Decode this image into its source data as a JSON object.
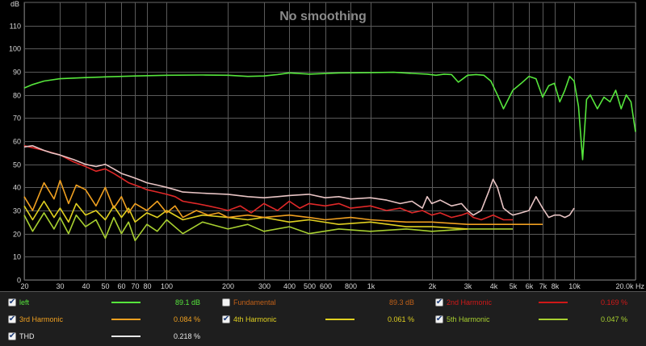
{
  "chart_data": {
    "type": "line",
    "title": "No smoothing",
    "ylabel": "dB",
    "xunit": "Hz",
    "xscale": "log",
    "xlim": [
      20,
      20000
    ],
    "ylim": [
      0,
      120
    ],
    "grid": true,
    "x_ticks": [
      20,
      30,
      40,
      50,
      60,
      70,
      80,
      100,
      200,
      300,
      400,
      500,
      600,
      800,
      1000,
      2000,
      3000,
      4000,
      5000,
      6000,
      7000,
      8000,
      10000,
      20000
    ],
    "x_tick_labels": [
      "20",
      "30",
      "40",
      "50",
      "60",
      "70",
      "80",
      "100",
      "200",
      "300",
      "400",
      "500",
      "600",
      "800",
      "1k",
      "2k",
      "3k",
      "4k",
      "5k",
      "6k",
      "7k",
      "8k",
      "10k",
      "20.0k Hz"
    ],
    "y_ticks": [
      0,
      10,
      20,
      30,
      40,
      50,
      60,
      70,
      80,
      90,
      100,
      110
    ],
    "series": [
      {
        "name": "left",
        "color": "#56e63c",
        "x": [
          20,
          22,
          25,
          30,
          40,
          50,
          70,
          100,
          150,
          200,
          250,
          300,
          350,
          400,
          500,
          700,
          1000,
          1300,
          1600,
          1900,
          2100,
          2300,
          2500,
          2700,
          3000,
          3300,
          3600,
          3900,
          4200,
          4500,
          5000,
          5500,
          6000,
          6500,
          7000,
          7500,
          8000,
          8500,
          9000,
          9500,
          10000,
          10500,
          11000,
          11500,
          12000,
          13000,
          14000,
          15000,
          16000,
          17000,
          18000,
          19000,
          20000
        ],
        "y": [
          83,
          84.5,
          86,
          87,
          87.5,
          87.8,
          88.2,
          88.5,
          88.6,
          88.5,
          88,
          88.2,
          88.8,
          89.5,
          89,
          89.5,
          89.6,
          89.8,
          89.3,
          89,
          88.5,
          89,
          88.8,
          85.5,
          88.5,
          88.8,
          88.5,
          86,
          80,
          74,
          82,
          85,
          88,
          87,
          79,
          84,
          85,
          77,
          82,
          88,
          86,
          75,
          52,
          78,
          80,
          74,
          79,
          77,
          82,
          74,
          80,
          77,
          64
        ]
      },
      {
        "name": "THD",
        "color": "#e8c4c4",
        "x": [
          20,
          22,
          25,
          27,
          30,
          35,
          40,
          45,
          50,
          55,
          60,
          65,
          70,
          75,
          80,
          90,
          100,
          110,
          120,
          150,
          200,
          250,
          300,
          350,
          400,
          500,
          600,
          700,
          800,
          1000,
          1200,
          1400,
          1600,
          1800,
          1900,
          2000,
          2200,
          2500,
          2800,
          3000,
          3200,
          3500,
          3800,
          4000,
          4200,
          4500,
          4800,
          5000,
          5500,
          6000,
          6500,
          7000,
          7500,
          8000,
          8500,
          9000,
          9500,
          10000
        ],
        "y": [
          57.5,
          58,
          56,
          55,
          54,
          52,
          50,
          49,
          50,
          48,
          46,
          45,
          44,
          43,
          42,
          41,
          40,
          39,
          38,
          37.5,
          37,
          36,
          35.5,
          36,
          36.5,
          37,
          35.5,
          36,
          35,
          35.5,
          34.5,
          33,
          34,
          31,
          36,
          33,
          34.5,
          32,
          33,
          30,
          28,
          30,
          38,
          43.5,
          40,
          31,
          29,
          28,
          29,
          30,
          36,
          31,
          27,
          28,
          28,
          27,
          28,
          31
        ]
      },
      {
        "name": "2nd Harmonic",
        "color": "#e02828",
        "x": [
          20,
          25,
          30,
          35,
          40,
          45,
          50,
          55,
          60,
          65,
          70,
          75,
          80,
          90,
          100,
          110,
          120,
          140,
          160,
          180,
          200,
          230,
          260,
          300,
          350,
          400,
          450,
          500,
          600,
          700,
          800,
          1000,
          1200,
          1400,
          1600,
          1800,
          2000,
          2200,
          2500,
          2800,
          3000,
          3200,
          3500,
          4000,
          4500,
          5000
        ],
        "y": [
          58,
          56,
          54,
          51,
          49,
          47,
          48,
          46,
          44,
          42,
          41,
          40,
          39,
          38,
          37,
          36,
          34,
          33,
          32,
          31,
          30,
          32,
          29,
          33,
          30,
          34,
          31,
          33,
          32,
          33,
          31,
          32,
          30,
          31,
          29,
          30,
          28,
          29,
          27,
          28,
          29,
          27,
          26,
          28,
          26,
          26
        ]
      },
      {
        "name": "3rd Harmonic",
        "color": "#f0a020",
        "x": [
          20,
          22,
          25,
          28,
          30,
          33,
          36,
          40,
          45,
          50,
          55,
          60,
          65,
          70,
          80,
          90,
          100,
          110,
          120,
          140,
          160,
          180,
          200,
          250,
          300,
          400,
          500,
          600,
          800,
          1000,
          1500,
          2000,
          3000,
          4000,
          5000,
          6000,
          7000
        ],
        "y": [
          36,
          30,
          42,
          35,
          43,
          33,
          41,
          39,
          32,
          40,
          31,
          36,
          29,
          33,
          30,
          34,
          29,
          32,
          27,
          30,
          28,
          29,
          27,
          28,
          27,
          28,
          27,
          26,
          27,
          26,
          25,
          25,
          24,
          24,
          24,
          24,
          24
        ]
      },
      {
        "name": "4th Harmonic",
        "color": "#e0d020",
        "x": [
          20,
          22,
          25,
          28,
          30,
          33,
          36,
          40,
          45,
          50,
          55,
          60,
          65,
          70,
          80,
          90,
          100,
          120,
          150,
          200,
          250,
          300,
          400,
          500,
          700,
          1000,
          1500,
          2000,
          3000
        ],
        "y": [
          32,
          26,
          34,
          27,
          31,
          25,
          33,
          28,
          30,
          26,
          32,
          27,
          31,
          25,
          29,
          27,
          30,
          26,
          28,
          27,
          26,
          27,
          25,
          26,
          24,
          25,
          23,
          23,
          22
        ]
      },
      {
        "name": "5th Harmonic",
        "color": "#a8d030",
        "x": [
          20,
          22,
          25,
          28,
          30,
          33,
          36,
          40,
          45,
          50,
          55,
          60,
          65,
          70,
          80,
          90,
          100,
          120,
          150,
          200,
          250,
          300,
          400,
          500,
          700,
          1000,
          1500,
          2000,
          3000,
          4000,
          5000
        ],
        "y": [
          28,
          21,
          29,
          22,
          27,
          20,
          28,
          23,
          26,
          18,
          27,
          20,
          25,
          17,
          24,
          21,
          26,
          20,
          25,
          22,
          24,
          21,
          23,
          20,
          22,
          21,
          22,
          21,
          22,
          22,
          22
        ]
      }
    ]
  },
  "legend": {
    "items": [
      {
        "label": "left",
        "value": "89.1 dB",
        "checked": true,
        "color": "#56e63c"
      },
      {
        "label": "Fundamental",
        "value": "89.3 dB",
        "checked": false,
        "color": "#c06018"
      },
      {
        "label": "2nd Harmonic",
        "value": "0.169 %",
        "checked": true,
        "color": "#d01818"
      },
      {
        "label": "3rd Harmonic",
        "value": "0.084 %",
        "checked": true,
        "color": "#f0a020"
      },
      {
        "label": "4th Harmonic",
        "value": "0.061 %",
        "checked": true,
        "color": "#e0d020"
      },
      {
        "label": "5th Harmonic",
        "value": "0.047 %",
        "checked": true,
        "color": "#a8d030"
      },
      {
        "label": "THD",
        "value": "0.218 %",
        "checked": true,
        "color": "#e8e8e8"
      }
    ]
  }
}
